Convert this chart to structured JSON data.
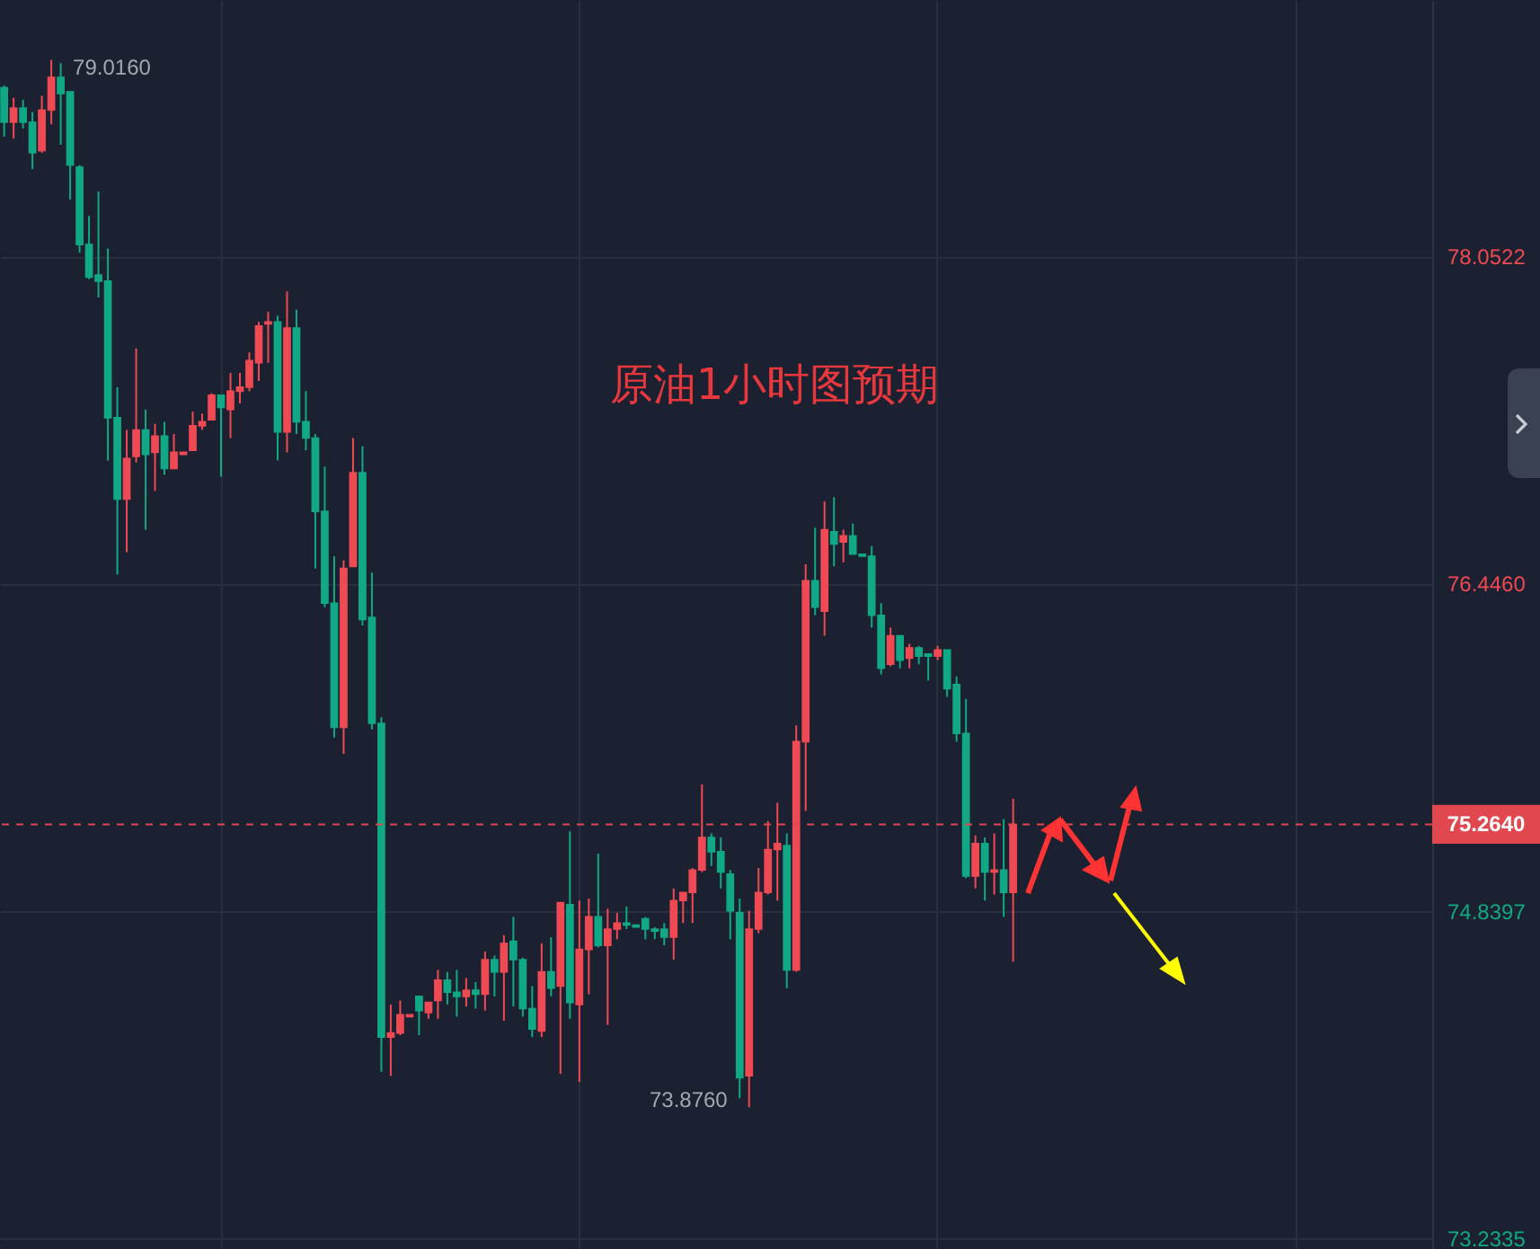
{
  "chart_data": {
    "type": "candlestick",
    "title": "原油1小时图预期",
    "categories": [
      null,
      null,
      null,
      null,
      null,
      null,
      null,
      null,
      null,
      null,
      null,
      null,
      null,
      null,
      null,
      null,
      null,
      null,
      null,
      null,
      null,
      null,
      null,
      null,
      null,
      null,
      null,
      null,
      null,
      null,
      null,
      null,
      null,
      null,
      null,
      null,
      null,
      null,
      null,
      null,
      null,
      null,
      null,
      null,
      null,
      null,
      null,
      null,
      null,
      null,
      null,
      null,
      null,
      null,
      null,
      null,
      null,
      null,
      null,
      null,
      null,
      null,
      null,
      null,
      null,
      null,
      null,
      null,
      null,
      null,
      null,
      null,
      null,
      null,
      null,
      null,
      null,
      null,
      null,
      null,
      null,
      null,
      null,
      null,
      null,
      null,
      null,
      null,
      null,
      null,
      null,
      null,
      null,
      null,
      null,
      null,
      null,
      null,
      null,
      null,
      null,
      null,
      null,
      null,
      null,
      null,
      null,
      null,
      null,
      null,
      null,
      null,
      null,
      null,
      null,
      null,
      null,
      null,
      null,
      null,
      null,
      null,
      null,
      null,
      null,
      null,
      null,
      null,
      null,
      null,
      null,
      null,
      null,
      null,
      null,
      null,
      null,
      null,
      null,
      null,
      null,
      null,
      null,
      null,
      null,
      null,
      null,
      null,
      null,
      null,
      null,
      null
    ],
    "ohlc": [
      [
        78.88,
        78.89,
        78.64,
        78.71
      ],
      [
        78.71,
        78.83,
        78.63,
        78.78
      ],
      [
        78.78,
        78.82,
        78.68,
        78.71
      ],
      [
        78.71,
        78.76,
        78.48,
        78.56
      ],
      [
        78.57,
        78.84,
        78.56,
        78.77
      ],
      [
        78.77,
        79.016,
        78.7,
        78.93
      ],
      [
        78.93,
        79.0,
        78.6,
        78.85
      ],
      [
        78.86,
        78.86,
        78.33,
        78.5
      ],
      [
        78.49,
        78.5,
        78.07,
        78.11
      ],
      [
        78.11,
        78.25,
        77.94,
        77.95
      ],
      [
        77.96,
        78.37,
        77.85,
        77.93
      ],
      [
        77.93,
        78.09,
        77.05,
        77.26
      ],
      [
        77.26,
        77.41,
        76.49,
        76.86
      ],
      [
        76.86,
        77.2,
        76.6,
        77.06
      ],
      [
        77.07,
        77.6,
        77.04,
        77.2
      ],
      [
        77.2,
        77.3,
        76.71,
        77.08
      ],
      [
        77.09,
        77.23,
        76.9,
        77.17
      ],
      [
        77.17,
        77.24,
        76.98,
        77.01
      ],
      [
        77.01,
        77.18,
        77.01,
        77.09
      ],
      [
        77.08,
        77.09,
        77.08,
        77.09
      ],
      [
        77.1,
        77.29,
        77.1,
        77.22
      ],
      [
        77.22,
        77.28,
        77.2,
        77.24
      ],
      [
        77.25,
        77.38,
        77.25,
        77.37
      ],
      [
        77.37,
        77.37,
        76.97,
        77.31
      ],
      [
        77.3,
        77.48,
        77.16,
        77.39
      ],
      [
        77.39,
        77.48,
        77.33,
        77.41
      ],
      [
        77.41,
        77.58,
        77.39,
        77.54
      ],
      [
        77.53,
        77.73,
        77.44,
        77.71
      ],
      [
        77.72,
        77.78,
        77.53,
        77.73
      ],
      [
        77.73,
        77.76,
        77.05,
        77.19
      ],
      [
        77.19,
        77.88,
        77.09,
        77.7
      ],
      [
        77.7,
        77.79,
        77.18,
        77.24
      ],
      [
        77.24,
        77.39,
        77.1,
        77.16
      ],
      [
        77.16,
        77.18,
        76.52,
        76.8
      ],
      [
        76.8,
        77.02,
        76.33,
        76.35
      ],
      [
        76.35,
        76.58,
        75.69,
        75.74
      ],
      [
        75.74,
        76.56,
        75.61,
        76.52
      ],
      [
        76.53,
        77.16,
        76.53,
        76.99
      ],
      [
        76.99,
        77.12,
        76.24,
        76.27
      ],
      [
        76.28,
        76.5,
        75.73,
        75.76
      ],
      [
        75.76,
        75.79,
        74.05,
        74.22
      ],
      [
        74.22,
        74.38,
        74.03,
        74.24
      ],
      [
        74.24,
        74.4,
        74.23,
        74.33
      ],
      [
        74.32,
        74.33,
        74.32,
        74.33
      ],
      [
        74.42,
        74.42,
        74.23,
        74.35
      ],
      [
        74.34,
        74.39,
        74.31,
        74.39
      ],
      [
        74.4,
        74.55,
        74.31,
        74.5
      ],
      [
        74.5,
        74.54,
        74.38,
        74.44
      ],
      [
        74.44,
        74.55,
        74.32,
        74.42
      ],
      [
        74.42,
        74.51,
        74.37,
        74.45
      ],
      [
        74.45,
        74.49,
        74.36,
        74.43
      ],
      [
        74.43,
        74.64,
        74.35,
        74.6
      ],
      [
        74.6,
        74.62,
        74.42,
        74.54
      ],
      [
        74.54,
        74.72,
        74.3,
        74.68
      ],
      [
        74.69,
        74.81,
        74.37,
        74.6
      ],
      [
        74.6,
        74.61,
        74.32,
        74.36
      ],
      [
        74.36,
        74.47,
        74.22,
        74.26
      ],
      [
        74.25,
        74.68,
        74.22,
        74.54
      ],
      [
        74.54,
        74.71,
        74.42,
        74.46
      ],
      [
        74.47,
        74.88,
        74.04,
        74.88
      ],
      [
        74.87,
        75.23,
        74.31,
        74.39
      ],
      [
        74.38,
        74.89,
        74.0,
        74.65
      ],
      [
        74.65,
        74.9,
        74.43,
        74.81
      ],
      [
        74.81,
        75.12,
        74.66,
        74.67
      ],
      [
        74.67,
        74.85,
        74.28,
        74.75
      ],
      [
        74.75,
        74.83,
        74.7,
        74.78
      ],
      [
        74.78,
        74.86,
        74.75,
        74.77
      ],
      [
        74.77,
        74.77,
        74.76,
        74.76
      ],
      [
        74.8,
        74.81,
        74.7,
        74.75
      ],
      [
        74.75,
        74.76,
        74.7,
        74.74
      ],
      [
        74.75,
        74.78,
        74.67,
        74.71
      ],
      [
        74.71,
        74.95,
        74.6,
        74.89
      ],
      [
        74.89,
        74.93,
        74.78,
        74.93
      ],
      [
        74.93,
        75.05,
        74.78,
        75.04
      ],
      [
        75.04,
        75.46,
        75.03,
        75.2
      ],
      [
        75.2,
        75.22,
        75.06,
        75.13
      ],
      [
        75.13,
        75.2,
        74.95,
        75.03
      ],
      [
        75.02,
        75.04,
        74.7,
        74.84
      ],
      [
        74.83,
        74.9,
        73.92,
        74.02
      ],
      [
        74.03,
        74.84,
        73.876,
        74.75
      ],
      [
        74.75,
        75.05,
        74.73,
        74.93
      ],
      [
        74.93,
        75.28,
        74.92,
        75.14
      ],
      [
        75.14,
        75.37,
        74.89,
        75.17
      ],
      [
        75.16,
        75.22,
        74.46,
        74.55
      ],
      [
        74.55,
        75.75,
        74.54,
        75.67
      ],
      [
        75.67,
        76.54,
        75.33,
        76.46
      ],
      [
        76.46,
        76.72,
        76.29,
        76.33
      ],
      [
        76.31,
        76.85,
        76.19,
        76.71
      ],
      [
        76.7,
        76.87,
        76.53,
        76.64
      ],
      [
        76.65,
        76.71,
        76.55,
        76.68
      ],
      [
        76.68,
        76.74,
        76.59,
        76.59
      ],
      [
        76.59,
        76.59,
        76.58,
        76.58
      ],
      [
        76.58,
        76.63,
        76.23,
        76.29
      ],
      [
        76.29,
        76.35,
        76.0,
        76.03
      ],
      [
        76.05,
        76.23,
        76.04,
        76.19
      ],
      [
        76.19,
        76.19,
        76.03,
        76.07
      ],
      [
        76.08,
        76.15,
        76.03,
        76.13
      ],
      [
        76.13,
        76.14,
        76.05,
        76.09
      ],
      [
        76.1,
        76.1,
        75.97,
        76.09
      ],
      [
        76.09,
        76.14,
        76.07,
        76.12
      ],
      [
        76.12,
        76.12,
        75.89,
        75.93
      ],
      [
        75.95,
        75.99,
        75.67,
        75.71
      ],
      [
        75.71,
        75.88,
        75.0,
        75.01
      ],
      [
        75.01,
        75.21,
        74.95,
        75.17
      ],
      [
        75.17,
        75.2,
        74.89,
        75.03
      ],
      [
        75.03,
        75.22,
        74.92,
        75.04
      ],
      [
        75.04,
        75.29,
        74.81,
        74.93
      ],
      [
        74.93,
        75.39,
        74.59,
        75.264
      ],
      null,
      null,
      null,
      null,
      null,
      null,
      null,
      null,
      null,
      null,
      null,
      null,
      null,
      null,
      null,
      null,
      null,
      null,
      null,
      null,
      null,
      null,
      null,
      null,
      null,
      null,
      null,
      null,
      null,
      null,
      null,
      null,
      null,
      null,
      null,
      null,
      null,
      null,
      null,
      null,
      null,
      null,
      null,
      null
    ],
    "colors": [
      "#11a886",
      "#ef4a53",
      "#11a886",
      "#11a886",
      "#ef4a53",
      "#ef4a53",
      "#11a886",
      "#11a886",
      "#11a886",
      "#11a886",
      "#11a886",
      "#11a886",
      "#11a886",
      "#ef4a53",
      "#ef4a53",
      "#11a886",
      "#ef4a53",
      "#11a886",
      "#ef4a53",
      "#ef4a53",
      "#ef4a53",
      "#ef4a53",
      "#ef4a53",
      "#11a886",
      "#ef4a53",
      "#ef4a53",
      "#ef4a53",
      "#ef4a53",
      "#ef4a53",
      "#11a886",
      "#ef4a53",
      "#11a886",
      "#11a886",
      "#11a886",
      "#11a886",
      "#11a886",
      "#ef4a53",
      "#ef4a53",
      "#11a886",
      "#11a886",
      "#11a886",
      "#ef4a53",
      "#ef4a53",
      "#ef4a53",
      "#11a886",
      "#ef4a53",
      "#ef4a53",
      "#11a886",
      "#11a886",
      "#ef4a53",
      "#11a886",
      "#ef4a53",
      "#11a886",
      "#ef4a53",
      "#11a886",
      "#11a886",
      "#11a886",
      "#ef4a53",
      "#11a886",
      "#ef4a53",
      "#11a886",
      "#ef4a53",
      "#ef4a53",
      "#11a886",
      "#ef4a53",
      "#ef4a53",
      "#11a886",
      "#11a886",
      "#11a886",
      "#11a886",
      "#11a886",
      "#ef4a53",
      "#ef4a53",
      "#ef4a53",
      "#ef4a53",
      "#11a886",
      "#11a886",
      "#11a886",
      "#11a886",
      "#ef4a53",
      "#ef4a53",
      "#ef4a53",
      "#ef4a53",
      "#11a886",
      "#ef4a53",
      "#ef4a53",
      "#11a886",
      "#ef4a53",
      "#11a886",
      "#ef4a53",
      "#11a886",
      "#11a886",
      "#11a886",
      "#11a886",
      "#ef4a53",
      "#11a886",
      "#ef4a53",
      "#11a886",
      "#11a886",
      "#ef4a53",
      "#11a886",
      "#11a886",
      "#11a886",
      "#ef4a53",
      "#11a886",
      "#ef4a53",
      "#11a886",
      "#ef4a53",
      null,
      null,
      null,
      null,
      null,
      null,
      null,
      null,
      null,
      null,
      null,
      null,
      null,
      null,
      null,
      null,
      null,
      null,
      null,
      null,
      null,
      null,
      null,
      null,
      null,
      null,
      null,
      null,
      null,
      null,
      null,
      null,
      null,
      null,
      null,
      null,
      null,
      null,
      null,
      null,
      null,
      null,
      null,
      null
    ],
    "ylim": [
      73.18,
      79.31
    ],
    "yticks": [
      78.0522,
      {
        "value": 76.446,
        "label": "76.4460"
      },
      74.8397,
      73.2335
    ],
    "grid": true,
    "tick_labels": "y",
    "ref_lines": [
      {
        "axis": "y",
        "value": 75.264,
        "label": "75.2640",
        "color": "#e0474f",
        "line_style": "dashed"
      }
    ],
    "annotations": [
      "79.0160",
      "73.8760"
    ]
  }
}
